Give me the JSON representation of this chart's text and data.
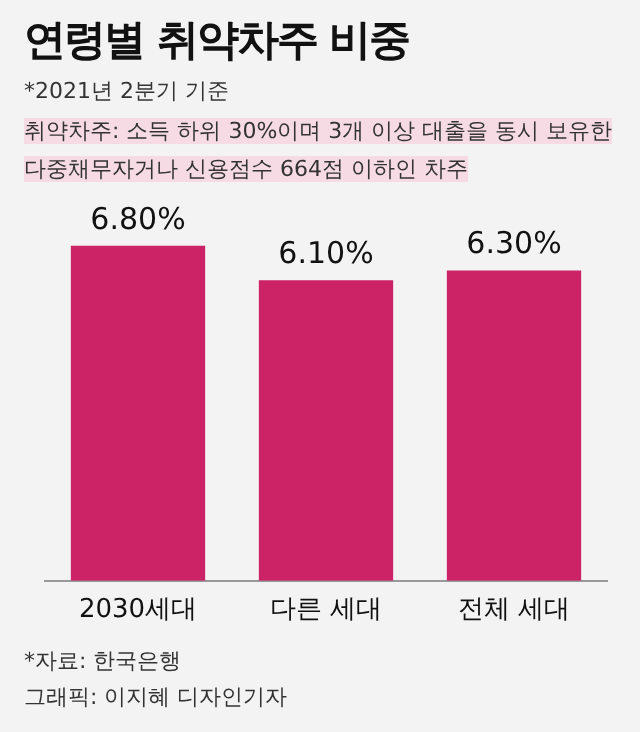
{
  "chart_data": {
    "type": "bar",
    "title": "연령별 취약차주 비중",
    "subtitle": "*2021년 2분기 기준",
    "annotations": [
      "취약차주: 소득 하위 30%이며 3개 이상 대출을 동시 보유한 다중채무자거나 신용점수 664점 이하인 차주",
      "*자료: 한국은행",
      "그래픽: 이지혜 디자인기자"
    ],
    "categories": [
      "2030세대",
      "다른 세대",
      "전체 세대"
    ],
    "values": [
      6.8,
      6.1,
      6.3
    ],
    "value_labels": [
      "6.80%",
      "6.10%",
      "6.30%"
    ],
    "color": "#cc2266"
  }
}
